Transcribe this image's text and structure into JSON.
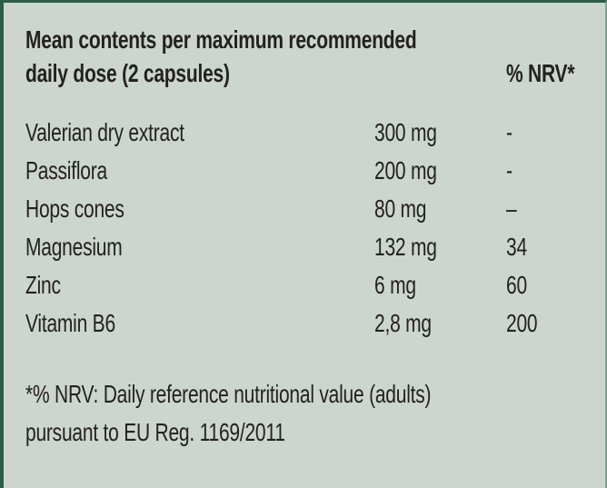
{
  "table": {
    "header": {
      "title_line1": "Mean contents per maximum recommended",
      "title_line2": "daily dose (2 capsules)",
      "nrv_column_header": "% NRV*"
    },
    "rows": [
      {
        "name": "Valerian dry extract",
        "amount": "300 mg",
        "nrv": "-"
      },
      {
        "name": "Passiflora",
        "amount": "200 mg",
        "nrv": "-"
      },
      {
        "name": "Hops cones",
        "amount": "80 mg",
        "nrv": "–"
      },
      {
        "name": "Magnesium",
        "amount": "132 mg",
        "nrv": "34"
      },
      {
        "name": "Zinc",
        "amount": "6 mg",
        "nrv": "60"
      },
      {
        "name": "Vitamin B6",
        "amount": "2,8 mg",
        "nrv": "200"
      }
    ],
    "footnote_line1": "*% NRV: Daily reference nutritional value (adults)",
    "footnote_line2": "pursuant to EU Reg. 1169/2011"
  },
  "colors": {
    "background": "#cdd5cf",
    "border_dark_green": "#2d5c49",
    "border_light_green": "#7aa292",
    "text": "#23221f"
  }
}
